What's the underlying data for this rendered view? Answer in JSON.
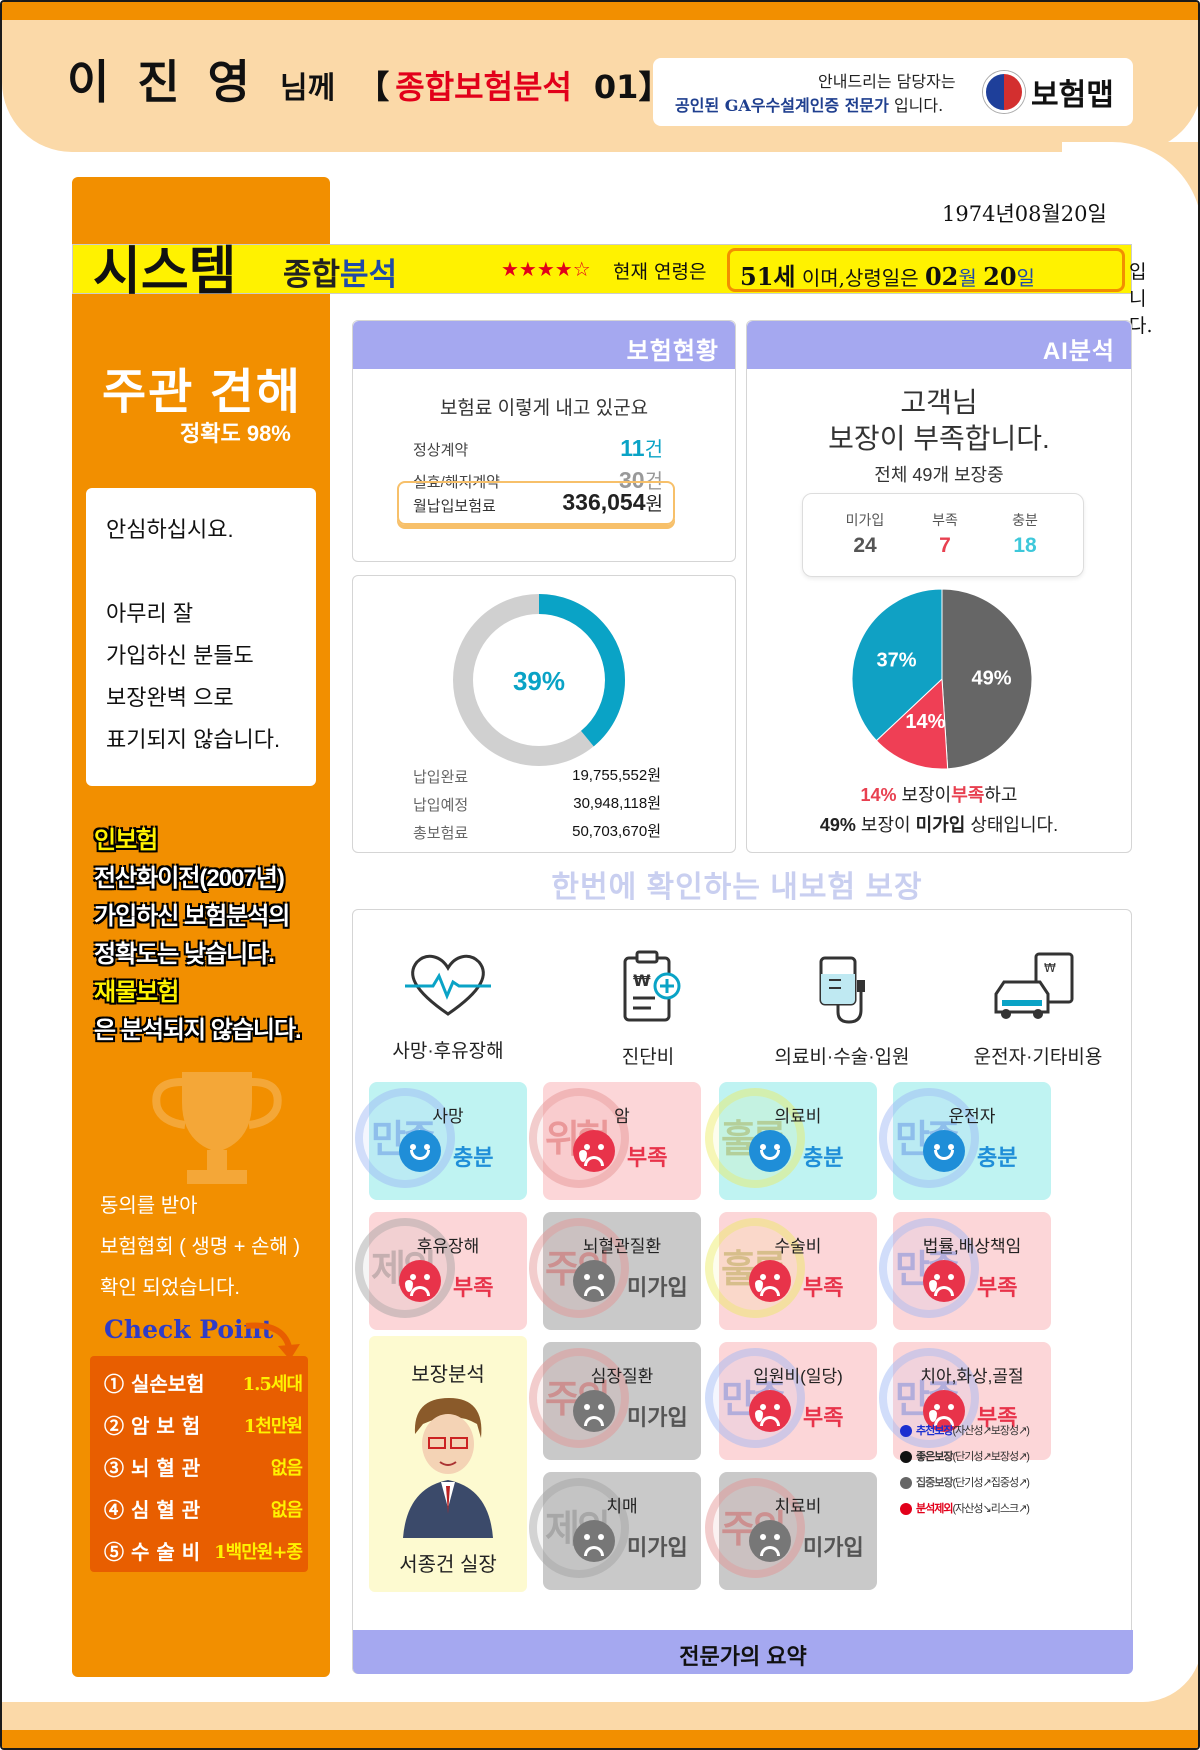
{
  "header": {
    "customer_name": "이 진 영",
    "honorific": "님께",
    "bracket_open": "【",
    "title": "종합보험분석",
    "title_num": "01",
    "bracket_close": "】",
    "agent_line1": "안내드리는 담당자는",
    "agent_line2_bold": "공인된 GA우수설계인증 전문가",
    "agent_line2_rest": "입니다.",
    "brand": "보험맵"
  },
  "birth_date": "1974년08월20일",
  "system_bar": {
    "title": "시스템",
    "sub_black": "종합",
    "sub_blue": "분석",
    "stars": "★★★★☆",
    "text_before": "현재 연령은",
    "age": "51세",
    "text_mid": "이며,상령일은",
    "month": "02",
    "month_unit": "월",
    "day": "20",
    "day_unit": "일",
    "text_after": "입니다."
  },
  "opinion": {
    "title": "주관 견해",
    "accuracy": "정확도 98%",
    "lines": [
      "안심하십시요.",
      "아무리 잘",
      "가입하신 분들도",
      "보장완벽 으로",
      "표기되지 않습니다."
    ]
  },
  "notes": [
    {
      "text": "인보험",
      "color": "yellow"
    },
    {
      "text": "전산화이전(2007년)",
      "color": "white"
    },
    {
      "text": "가입하신 보험분석의",
      "color": "white"
    },
    {
      "text": "정확도는 낮습니다.",
      "color": "white"
    },
    {
      "text": "재물보험",
      "color": "yellow"
    },
    {
      "text": "은 분석되지 않습니다.",
      "color": "white"
    }
  ],
  "consent": [
    "동의를 받아",
    "보험협회 ( 생명 + 손해 )",
    "확인 되었습니다."
  ],
  "check_point": {
    "title": "Check Point",
    "items": [
      {
        "label": "① 실손보험",
        "value": "1.5세대"
      },
      {
        "label": "② 암 보 험",
        "value": "1천만원"
      },
      {
        "label": "③ 뇌 혈 관",
        "value": "없음"
      },
      {
        "label": "④ 심 혈 관",
        "value": "없음"
      },
      {
        "label": "⑤ 수 술 비",
        "value": "1백만원+종"
      }
    ]
  },
  "insurance": {
    "header": "보험현황",
    "subtitle": "보험료 이렇게 내고 있군요",
    "active_label": "정상계약",
    "active_count": "11",
    "count_unit": "건",
    "lapsed_label": "실효/해지계약",
    "lapsed_count": "30",
    "premium_label": "월납입보험료",
    "premium_value": "336,054",
    "premium_unit": "원"
  },
  "payment": {
    "percent_label": "39%",
    "paid_fraction": 0.39,
    "paid_label": "납입완료",
    "paid_value": "19,755,552원",
    "due_label": "납입예정",
    "due_value": "30,948,118원",
    "total_label": "총보험료",
    "total_value": "50,703,670원",
    "color_paid": "#0aa3c6",
    "color_rest": "#d0d0d0"
  },
  "ai": {
    "header": "AI분석",
    "line1": "고객님",
    "line2": "보장이 부족합니다.",
    "line3": "전체 49개 보장중",
    "stats": [
      {
        "label": "미가입",
        "value": "24",
        "color": "#555555"
      },
      {
        "label": "부족",
        "value": "7",
        "color": "#e84050"
      },
      {
        "label": "충분",
        "value": "18",
        "color": "#3ec8da"
      }
    ],
    "summary1_pct": "14%",
    "summary1_text": "보장이",
    "summary1_key": "부족",
    "summary1_end": "하고",
    "summary2_pct": "49%",
    "summary2_text": "보장이",
    "summary2_key": "미가입",
    "summary2_end": "상태입니다."
  },
  "chart_data": {
    "type": "pie",
    "labels": [
      "미가입",
      "부족",
      "충분"
    ],
    "values": [
      49,
      14,
      37
    ],
    "value_labels": [
      "49%",
      "14%",
      "37%"
    ],
    "colors": [
      "#666666",
      "#ef3f55",
      "#10a1c4"
    ]
  },
  "tagline": "한번에 확인하는 내보험 보장",
  "categories": [
    {
      "label": "사망·후유장해",
      "icon": "heart-pulse-icon"
    },
    {
      "label": "진단비",
      "icon": "diagnosis-clipboard-icon"
    },
    {
      "label": "의료비·수술·입원",
      "icon": "iv-drip-icon"
    },
    {
      "label": "운전자·기타비용",
      "icon": "car-document-icon"
    }
  ],
  "tiles": [
    {
      "title": "사망",
      "status": "충분",
      "stamp": "만족",
      "bg": "blue",
      "face": "blue",
      "stamp_color": "blue",
      "col": 0,
      "row": 0
    },
    {
      "title": "암",
      "status": "부족",
      "stamp": "위험",
      "bg": "pink",
      "face": "red",
      "stamp_color": "red",
      "col": 1,
      "row": 0
    },
    {
      "title": "의료비",
      "status": "충분",
      "stamp": "훌륭",
      "bg": "blue",
      "face": "blue",
      "stamp_color": "yellow",
      "col": 2,
      "row": 0
    },
    {
      "title": "운전자",
      "status": "충분",
      "stamp": "만족",
      "bg": "blue",
      "face": "blue",
      "stamp_color": "blue",
      "col": 3,
      "row": 0
    },
    {
      "title": "후유장해",
      "status": "부족",
      "stamp": "제외",
      "bg": "pink",
      "face": "red",
      "stamp_color": "gray",
      "col": 0,
      "row": 1
    },
    {
      "title": "뇌혈관질환",
      "status": "미가입",
      "stamp": "주의",
      "bg": "gray",
      "face": "gray",
      "stamp_color": "red",
      "col": 1,
      "row": 1
    },
    {
      "title": "수술비",
      "status": "부족",
      "stamp": "훌륭",
      "bg": "pink",
      "face": "red",
      "stamp_color": "yellow",
      "col": 2,
      "row": 1
    },
    {
      "title": "법률,배상책임",
      "status": "부족",
      "stamp": "만족",
      "bg": "pink",
      "face": "red",
      "stamp_color": "blue",
      "col": 3,
      "row": 1
    },
    {
      "title": "심장질환",
      "status": "미가입",
      "stamp": "주의",
      "bg": "gray",
      "face": "gray",
      "stamp_color": "red",
      "col": 1,
      "row": 2
    },
    {
      "title": "입원비(일당)",
      "status": "부족",
      "stamp": "만족",
      "bg": "pink",
      "face": "red",
      "stamp_color": "blue",
      "col": 2,
      "row": 2
    },
    {
      "title": "치아,화상,골절",
      "status": "부족",
      "stamp": "만족",
      "bg": "pink",
      "face": "red",
      "stamp_color": "blue",
      "col": 3,
      "row": 2
    },
    {
      "title": "치매",
      "status": "미가입",
      "stamp": "제외",
      "bg": "gray",
      "face": "gray",
      "stamp_color": "gray",
      "col": 1,
      "row": 3
    },
    {
      "title": "치료비",
      "status": "미가입",
      "stamp": "주의",
      "bg": "gray",
      "face": "gray",
      "stamp_color": "red",
      "col": 2,
      "row": 3
    }
  ],
  "expert": {
    "title": "보장분석",
    "name": "서종건 실장"
  },
  "legend": [
    {
      "name": "추천보장",
      "desc": "(자산성↗보장성↗)",
      "color": "#1a2fd0"
    },
    {
      "name": "좋은보장",
      "desc": "(단기성↗보장성↗)",
      "color": "#111111"
    },
    {
      "name": "집중보장",
      "desc": "(단기성↗집중성↗)",
      "color": "#666666"
    },
    {
      "name": "분석제외",
      "desc": "(자산성↘리스크↗)",
      "color": "#e2001a"
    }
  ],
  "footer": "전문가의 요약"
}
